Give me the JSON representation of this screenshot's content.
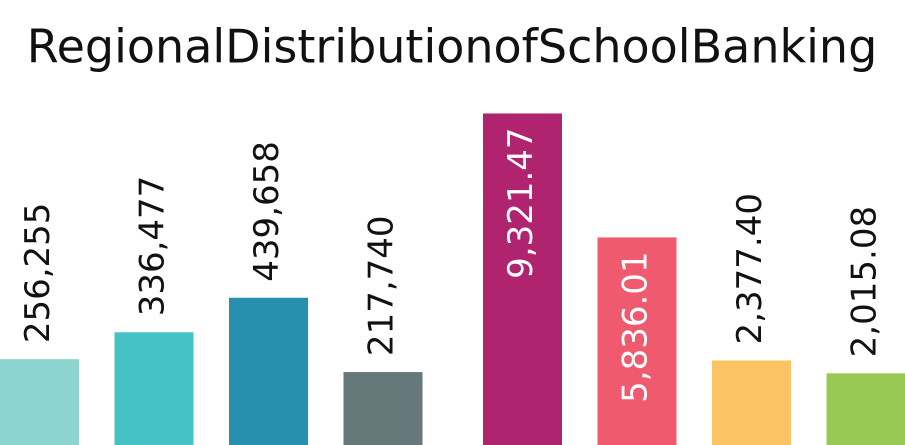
{
  "title": "RegionalDistributionofSchoolBanking",
  "chart_data": [
    {
      "type": "bar",
      "values": [
        256255,
        336477,
        439658,
        217740
      ],
      "value_labels": [
        "256,255",
        "336,477",
        "439,658",
        "217,740"
      ],
      "colors": [
        "#8dd3d0",
        "#45c2c6",
        "#2790ad",
        "#66787a"
      ],
      "ylim": [
        0,
        1030000
      ]
    },
    {
      "type": "bar",
      "values": [
        9321.47,
        5836.01,
        2377.4,
        2015.08
      ],
      "value_labels": [
        "9,321.47",
        "5,836.01",
        "2,377.40",
        "2,015.08"
      ],
      "colors": [
        "#b0236f",
        "#f05a6e",
        "#fcc365",
        "#99c955"
      ],
      "ylim": [
        0,
        9700
      ]
    }
  ]
}
